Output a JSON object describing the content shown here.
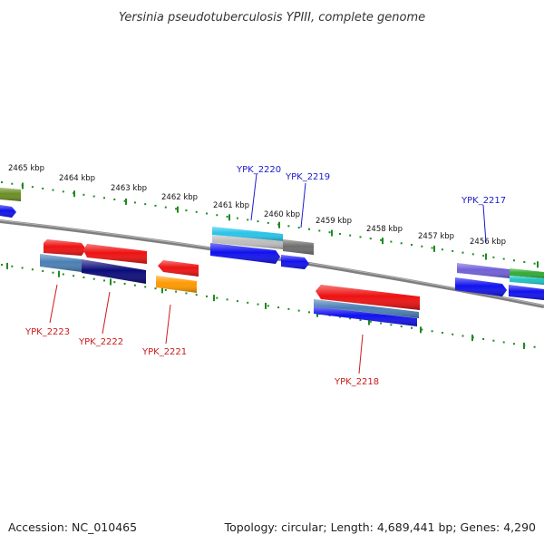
{
  "title": "Yersinia pseudotuberculosis YPIII, complete genome",
  "scale_labels": [
    "2465 kbp",
    "2464 kbp",
    "2463 kbp",
    "2462 kbp",
    "2461 kbp",
    "2460 kbp",
    "2459 kbp",
    "2458 kbp",
    "2457 kbp",
    "2456 kbp"
  ],
  "gene_labels": {
    "forward": [
      "YPK_2220",
      "YPK_2219",
      "YPK_2217"
    ],
    "reverse": [
      "YPK_2223",
      "YPK_2222",
      "YPK_2221",
      "YPK_2218"
    ]
  },
  "colors": {
    "forward_label": "#1a1acc",
    "reverse_label": "#cc1a1a",
    "backbone": "#7f7f7f",
    "tick": "#1f8a1f",
    "red": "#ee1111",
    "blue": "#1111ee",
    "navy": "#0b0b7a",
    "steel": "#4a7fb5",
    "cyan": "#28c4e8",
    "gray": "#6e6e6e",
    "silver": "#bdbdbd",
    "orange": "#ff9900",
    "olive": "#6b8e23",
    "purple": "#7060d8",
    "teal": "#20c4c4",
    "green": "#33aa33"
  },
  "footer": {
    "accession": "Accession: NC_010465",
    "topology": "Topology: circular; Length: 4,689,441 bp; Genes: 4,290"
  }
}
